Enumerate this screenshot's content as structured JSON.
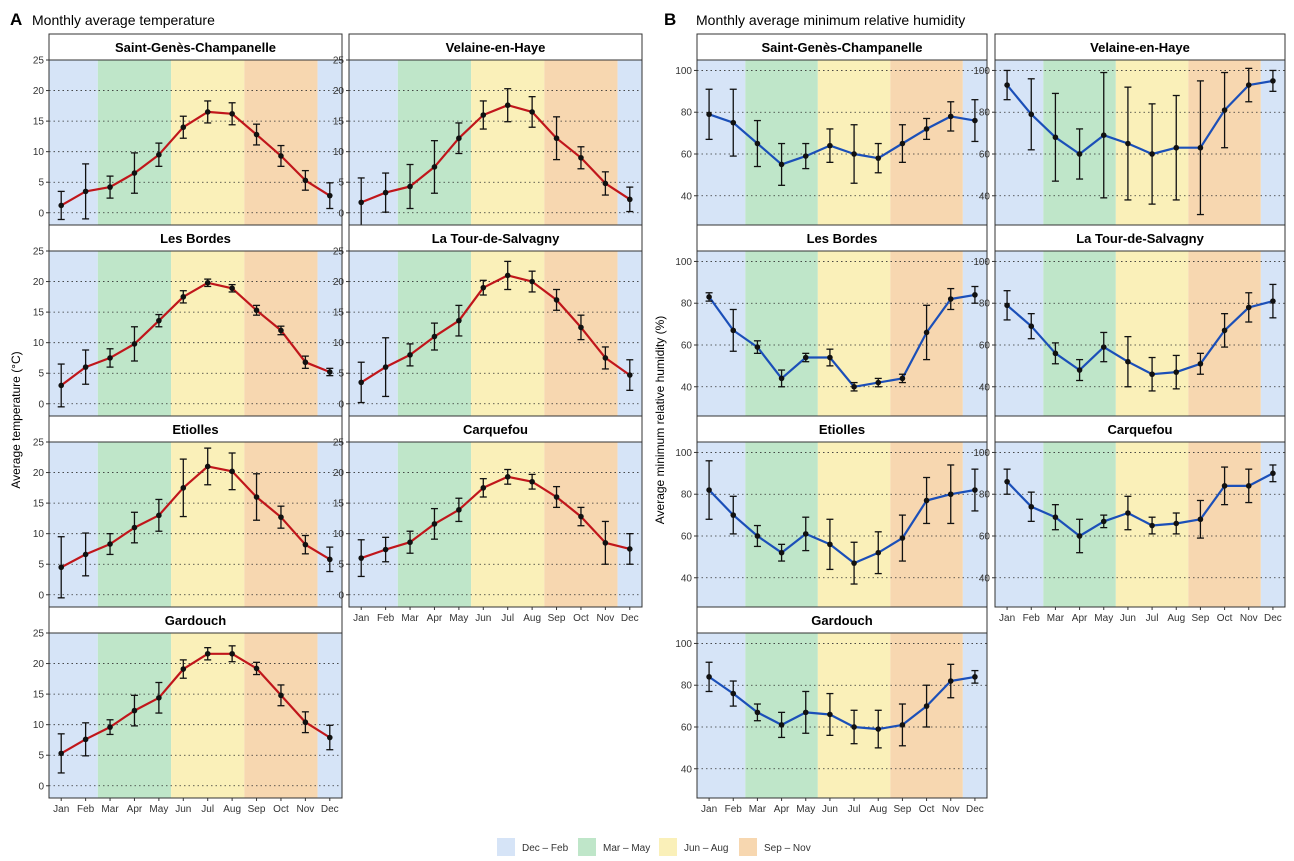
{
  "panels": {
    "A": {
      "letter": "A",
      "title": "Monthly average temperature",
      "ylabel": "Average temperature (°C)"
    },
    "B": {
      "letter": "B",
      "title": "Monthly average minimum relative humidity",
      "ylabel": "Average minimum relative humidity (%)"
    }
  },
  "legend": [
    {
      "label": "Dec – Feb",
      "color": "#d6e4f7"
    },
    {
      "label": "Mar – May",
      "color": "#bfe6c9"
    },
    {
      "label": "Jun – Aug",
      "color": "#faf0b9"
    },
    {
      "label": "Sep – Nov",
      "color": "#f7d7b0"
    }
  ],
  "colors": {
    "temperature_line": "#c0161b",
    "humidity_line": "#1b4fb8",
    "points": "#111111",
    "grid": "#333333"
  },
  "chart_data": [
    {
      "type": "line",
      "panel": "A",
      "title": "Monthly average temperature",
      "xlabel": "",
      "ylabel": "Average temperature (°C)",
      "categories": [
        "Jan",
        "Feb",
        "Mar",
        "Apr",
        "May",
        "Jun",
        "Jul",
        "Aug",
        "Sep",
        "Oct",
        "Nov",
        "Dec"
      ],
      "ylim": [
        -2,
        25
      ],
      "yticks": [
        0,
        5,
        10,
        15,
        20,
        25
      ],
      "grid": "horizontal dotted",
      "seasons": [
        {
          "label": "Dec – Feb",
          "months": [
            "Jan",
            "Feb"
          ]
        },
        {
          "label": "Mar – May",
          "months": [
            "Mar",
            "Apr",
            "May"
          ]
        },
        {
          "label": "Jun – Aug",
          "months": [
            "Jun",
            "Jul",
            "Aug"
          ]
        },
        {
          "label": "Sep – Nov",
          "months": [
            "Sep",
            "Oct",
            "Nov"
          ]
        },
        {
          "label": "Dec – Feb",
          "months": [
            "Dec"
          ]
        }
      ],
      "series": [
        {
          "name": "Saint-Genès-Champanelle",
          "values": [
            1.2,
            3.5,
            4.2,
            6.5,
            9.5,
            14.0,
            16.5,
            16.2,
            12.8,
            9.3,
            5.3,
            2.8
          ],
          "err": [
            2.3,
            4.5,
            1.8,
            3.3,
            1.9,
            1.8,
            1.8,
            1.8,
            1.7,
            1.7,
            1.6,
            2.1
          ]
        },
        {
          "name": "Velaine-en-Haye",
          "values": [
            1.7,
            3.3,
            4.3,
            7.5,
            12.2,
            16.0,
            17.6,
            16.5,
            12.2,
            9.0,
            4.8,
            2.2
          ],
          "err": [
            4.0,
            3.2,
            3.6,
            4.3,
            2.5,
            2.3,
            2.7,
            2.5,
            3.5,
            1.8,
            1.9,
            2.0
          ]
        },
        {
          "name": "Les Bordes",
          "values": [
            3.0,
            6.0,
            7.5,
            9.8,
            13.6,
            17.5,
            19.8,
            18.9,
            15.3,
            12.0,
            6.8,
            5.2
          ],
          "err": [
            3.5,
            2.8,
            1.5,
            2.8,
            1.0,
            1.0,
            0.6,
            0.6,
            0.8,
            0.7,
            1.0,
            0.6
          ]
        },
        {
          "name": "La Tour-de-Salvagny",
          "values": [
            3.5,
            6.0,
            8.0,
            11.0,
            13.6,
            19.0,
            21.0,
            20.0,
            17.0,
            12.5,
            7.5,
            4.7
          ],
          "err": [
            3.3,
            4.8,
            1.8,
            2.2,
            2.5,
            1.2,
            2.3,
            1.7,
            1.7,
            2.0,
            1.8,
            2.5
          ]
        },
        {
          "name": "Etiolles",
          "values": [
            4.5,
            6.6,
            8.3,
            11.0,
            13.0,
            17.5,
            21.0,
            20.2,
            16.0,
            12.7,
            8.2,
            5.8
          ],
          "err": [
            5.0,
            3.5,
            1.7,
            2.5,
            2.6,
            4.7,
            3.0,
            3.0,
            3.8,
            1.8,
            1.5,
            2.0
          ]
        },
        {
          "name": "Carquefou",
          "values": [
            6.0,
            7.4,
            8.6,
            11.6,
            13.9,
            17.5,
            19.3,
            18.5,
            16.0,
            12.8,
            8.5,
            7.5
          ],
          "err": [
            3.0,
            2.0,
            1.8,
            2.5,
            1.9,
            1.5,
            1.2,
            1.2,
            1.7,
            1.5,
            3.5,
            2.5
          ]
        },
        {
          "name": "Gardouch",
          "values": [
            5.3,
            7.6,
            9.6,
            12.3,
            14.4,
            19.1,
            21.6,
            21.6,
            19.2,
            14.8,
            10.4,
            7.9
          ],
          "err": [
            3.2,
            2.7,
            1.2,
            2.5,
            2.5,
            1.5,
            1.0,
            1.3,
            1.0,
            1.7,
            1.7,
            2.0
          ]
        }
      ]
    },
    {
      "type": "line",
      "panel": "B",
      "title": "Monthly average minimum relative humidity",
      "xlabel": "",
      "ylabel": "Average minimum relative humidity (%)",
      "categories": [
        "Jan",
        "Feb",
        "Mar",
        "Apr",
        "May",
        "Jun",
        "Jul",
        "Aug",
        "Sep",
        "Oct",
        "Nov",
        "Dec"
      ],
      "ylim": [
        26,
        105
      ],
      "yticks": [
        40,
        60,
        80,
        100
      ],
      "grid": "horizontal dotted",
      "seasons": [
        {
          "label": "Dec – Feb",
          "months": [
            "Jan",
            "Feb"
          ]
        },
        {
          "label": "Mar – May",
          "months": [
            "Mar",
            "Apr",
            "May"
          ]
        },
        {
          "label": "Jun – Aug",
          "months": [
            "Jun",
            "Jul",
            "Aug"
          ]
        },
        {
          "label": "Sep – Nov",
          "months": [
            "Sep",
            "Oct",
            "Nov"
          ]
        },
        {
          "label": "Dec – Feb",
          "months": [
            "Dec"
          ]
        }
      ],
      "series": [
        {
          "name": "Saint-Genès-Champanelle",
          "values": [
            79,
            75,
            65,
            55,
            59,
            64,
            60,
            58,
            65,
            72,
            78,
            76
          ],
          "err": [
            12,
            16,
            11,
            10,
            6,
            8,
            14,
            7,
            9,
            5,
            7,
            10
          ]
        },
        {
          "name": "Velaine-en-Haye",
          "values": [
            93,
            79,
            68,
            60,
            69,
            65,
            60,
            63,
            63,
            81,
            93,
            95
          ],
          "err": [
            7,
            17,
            21,
            12,
            30,
            27,
            24,
            25,
            32,
            18,
            8,
            5
          ]
        },
        {
          "name": "Les Bordes",
          "values": [
            83,
            67,
            59,
            44,
            54,
            54,
            40,
            42,
            44,
            66,
            82,
            84
          ],
          "err": [
            2,
            10,
            3,
            4,
            2,
            4,
            2,
            2,
            2,
            13,
            5,
            4
          ]
        },
        {
          "name": "La Tour-de-Salvagny",
          "values": [
            79,
            69,
            56,
            48,
            59,
            52,
            46,
            47,
            51,
            67,
            78,
            81
          ],
          "err": [
            7,
            6,
            5,
            5,
            7,
            12,
            8,
            8,
            5,
            8,
            7,
            8
          ]
        },
        {
          "name": "Etiolles",
          "values": [
            82,
            70,
            60,
            52,
            61,
            56,
            47,
            52,
            59,
            77,
            80,
            82
          ],
          "err": [
            14,
            9,
            5,
            4,
            8,
            12,
            10,
            10,
            11,
            11,
            14,
            10
          ]
        },
        {
          "name": "Carquefou",
          "values": [
            86,
            74,
            69,
            60,
            67,
            71,
            65,
            66,
            68,
            84,
            84,
            90
          ],
          "err": [
            6,
            7,
            6,
            8,
            3,
            8,
            4,
            5,
            9,
            9,
            8,
            4
          ]
        },
        {
          "name": "Gardouch",
          "values": [
            84,
            76,
            67,
            61,
            67,
            66,
            60,
            59,
            61,
            70,
            82,
            84
          ],
          "err": [
            7,
            6,
            4,
            6,
            10,
            10,
            8,
            9,
            10,
            10,
            8,
            3
          ]
        }
      ]
    }
  ]
}
